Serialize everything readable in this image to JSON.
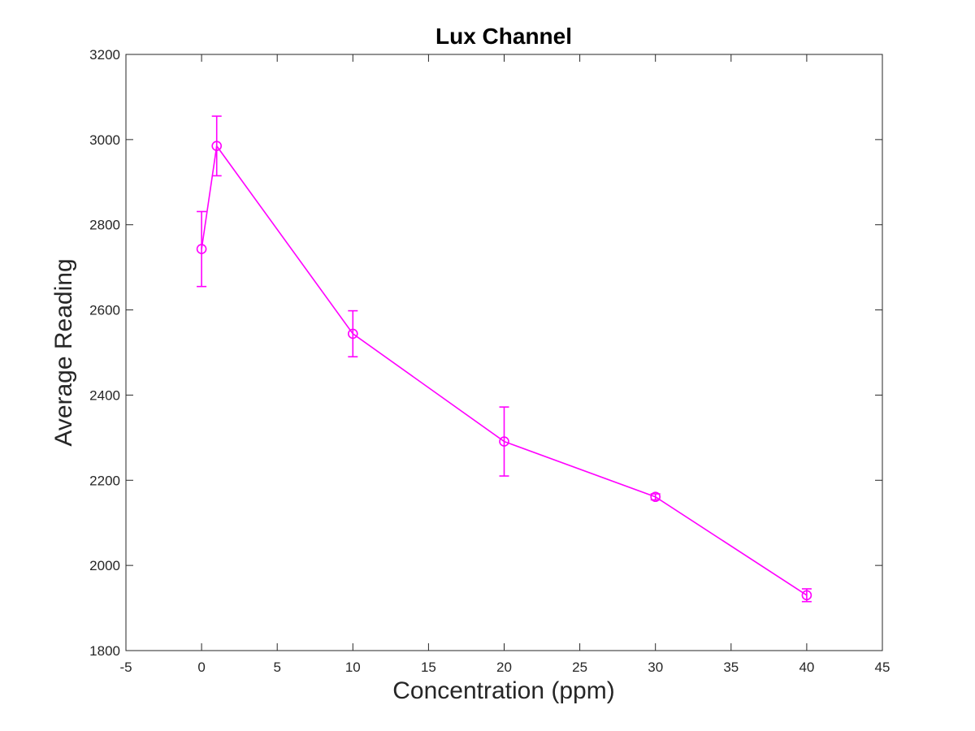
{
  "chart_data": {
    "type": "line",
    "title": "Lux Channel",
    "xlabel": "Concentration (ppm)",
    "ylabel": "Average Reading",
    "xlim": [
      -5,
      45
    ],
    "ylim": [
      1800,
      3200
    ],
    "xticks": [
      -5,
      0,
      5,
      10,
      15,
      20,
      25,
      30,
      35,
      40,
      45
    ],
    "yticks": [
      1800,
      2000,
      2200,
      2400,
      2600,
      2800,
      3000,
      3200
    ],
    "grid": false,
    "legend": "none",
    "series": [
      {
        "color": "#ff00ff",
        "marker": "circle",
        "error_bars": true,
        "points": [
          {
            "x": 0,
            "y": 2743,
            "err": 88
          },
          {
            "x": 1,
            "y": 2985,
            "err": 70
          },
          {
            "x": 10,
            "y": 2544,
            "err": 54
          },
          {
            "x": 20,
            "y": 2291,
            "err": 81
          },
          {
            "x": 30,
            "y": 2161,
            "err": 7
          },
          {
            "x": 40,
            "y": 1930,
            "err": 15
          }
        ]
      }
    ]
  }
}
